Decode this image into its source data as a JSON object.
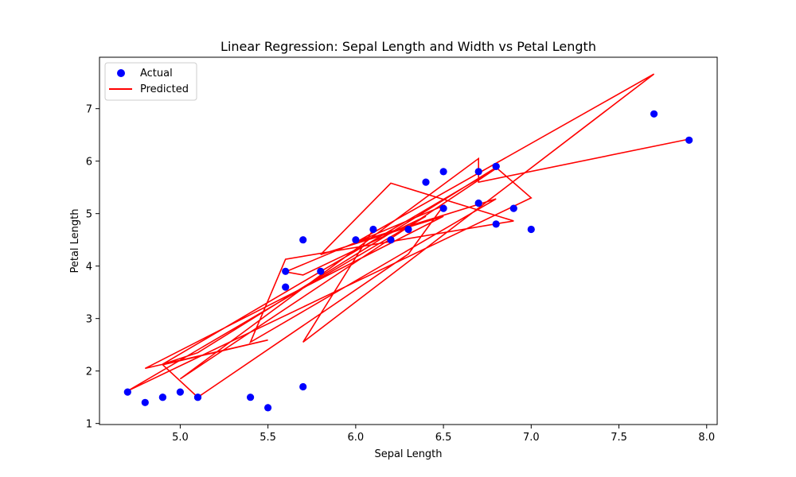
{
  "chart_data": {
    "type": "scatter",
    "title": "Linear Regression: Sepal Length and Width vs Petal Length",
    "xlabel": "Sepal Length",
    "ylabel": "Petal Length",
    "xlim": [
      4.54,
      8.06
    ],
    "ylim": [
      0.98,
      7.98
    ],
    "xticks": [
      "5.0",
      "5.5",
      "6.0",
      "6.5",
      "7.0",
      "7.5",
      "8.0"
    ],
    "yticks": [
      "1",
      "2",
      "3",
      "4",
      "5",
      "6",
      "7"
    ],
    "grid": false,
    "legend_position": "top-left",
    "series": [
      {
        "name": "Actual",
        "kind": "scatter",
        "color": "#0000ff",
        "x": [
          6.1,
          5.7,
          7.7,
          6.0,
          6.8,
          5.4,
          5.6,
          6.9,
          6.2,
          5.8,
          6.5,
          4.8,
          5.5,
          4.9,
          5.1,
          6.3,
          6.5,
          5.6,
          5.7,
          6.4,
          4.7,
          7.0,
          6.8,
          5.1,
          4.9,
          6.8,
          5.0,
          6.7,
          6.7,
          7.9
        ],
        "y": [
          4.7,
          1.7,
          6.9,
          4.5,
          4.8,
          1.5,
          3.6,
          5.1,
          4.5,
          3.9,
          5.1,
          1.4,
          1.3,
          1.5,
          1.5,
          4.7,
          5.8,
          3.9,
          4.5,
          5.6,
          1.6,
          4.7,
          5.9,
          1.5,
          1.5,
          5.9,
          1.6,
          5.2,
          5.8,
          6.4
        ]
      },
      {
        "name": "Predicted",
        "kind": "line",
        "color": "#ff0000",
        "x": [
          6.1,
          5.7,
          7.7,
          6.0,
          6.8,
          5.4,
          5.6,
          6.9,
          6.2,
          5.8,
          6.5,
          4.8,
          5.5,
          4.9,
          5.1,
          6.3,
          6.5,
          5.6,
          5.7,
          6.4,
          4.7,
          7.0,
          6.8,
          5.1,
          4.9,
          6.8,
          5.0,
          6.7,
          6.7,
          7.9
        ],
        "y": [
          4.7,
          2.55,
          7.66,
          4.45,
          5.28,
          2.55,
          4.13,
          4.86,
          5.58,
          4.22,
          4.95,
          2.05,
          2.59,
          2.12,
          1.5,
          4.23,
          5.15,
          3.89,
          3.83,
          4.95,
          1.62,
          5.3,
          5.88,
          2.35,
          2.13,
          5.86,
          1.85,
          6.05,
          5.6,
          6.42
        ]
      }
    ]
  }
}
